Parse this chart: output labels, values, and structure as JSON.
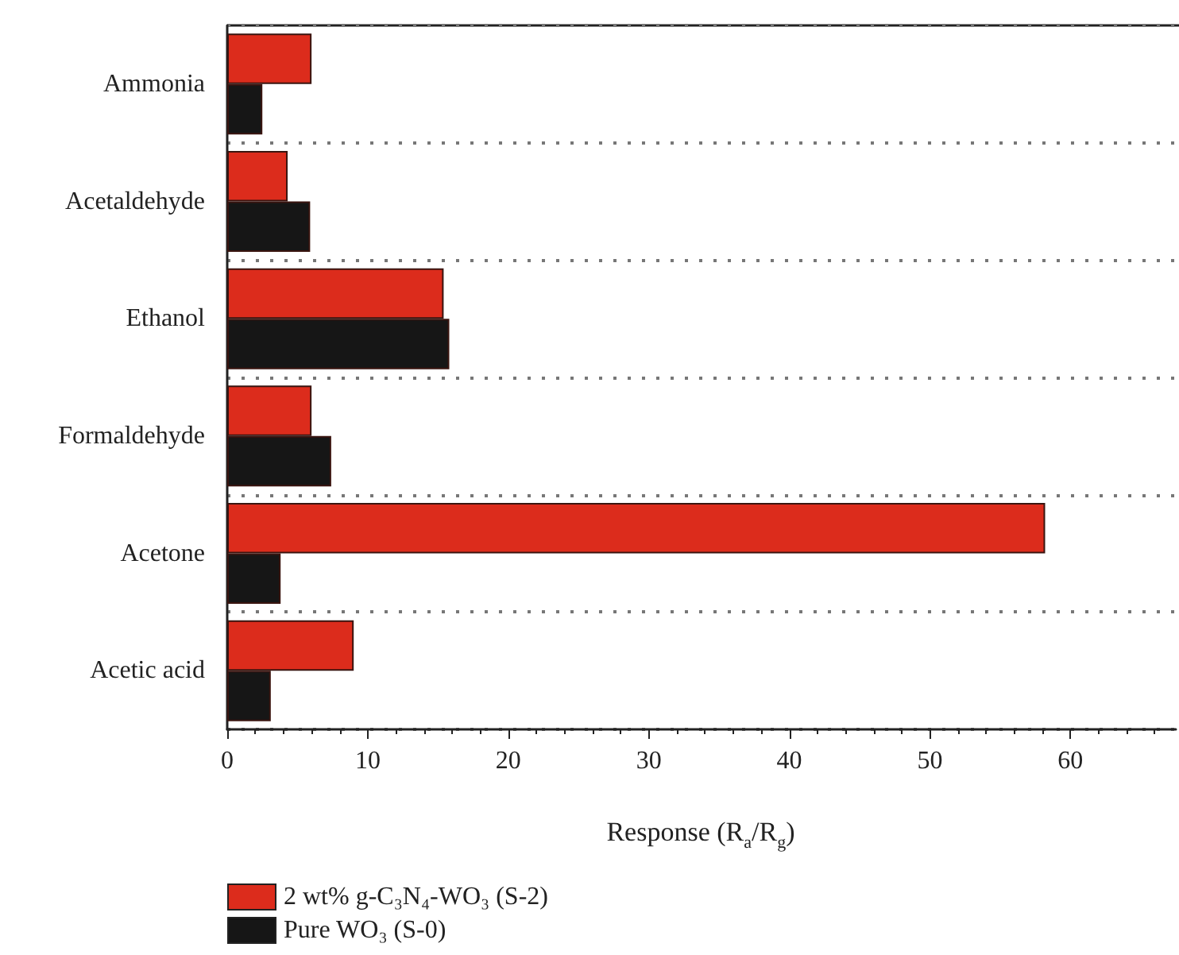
{
  "chart_data": {
    "type": "bar",
    "orientation": "horizontal",
    "xlabel": "Response (R$_{a}$/R$_{g}$)",
    "categories": [
      "Ammonia",
      "Acetaldehyde",
      "Ethanol",
      "Formaldehyde",
      "Acetone",
      "Acetic acid"
    ],
    "series": [
      {
        "name": "2 wt% g-C₃N₄-WO₃ (S-2)",
        "color": "#dc2c1c",
        "values": [
          6.0,
          4.3,
          15.4,
          6.0,
          58.2,
          9.0
        ]
      },
      {
        "name": "Pure WO₃ (S-0)",
        "color": "#161616",
        "values": [
          2.5,
          5.9,
          15.8,
          7.4,
          3.8,
          3.1
        ]
      }
    ],
    "xlim": [
      0,
      67.5
    ],
    "xticks": [
      0,
      10,
      20,
      30,
      40,
      50,
      60
    ],
    "grid": "y",
    "legend": "bottom left"
  }
}
